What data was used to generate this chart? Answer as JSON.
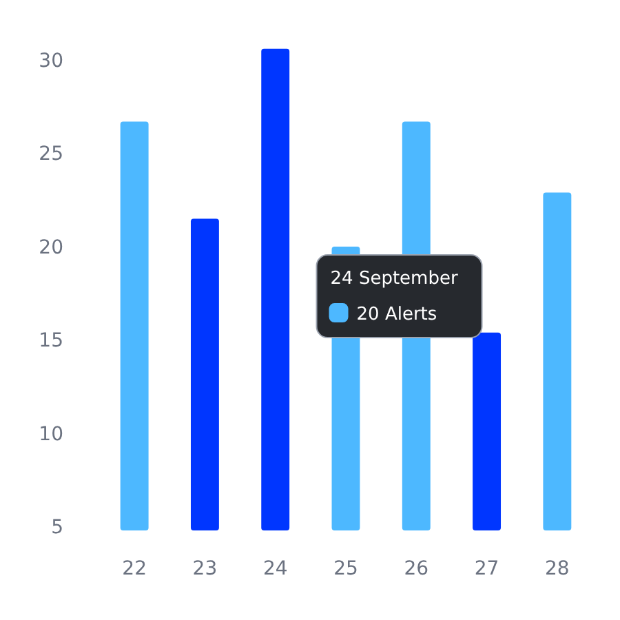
{
  "chart_data": {
    "type": "bar",
    "categories": [
      "22",
      "23",
      "24",
      "25",
      "26",
      "27",
      "28"
    ],
    "values": [
      26.7,
      21.5,
      30.6,
      20,
      26.7,
      15.4,
      22.9
    ],
    "colors": [
      "#4db8ff",
      "#0036ff",
      "#0036ff",
      "#4db8ff",
      "#4db8ff",
      "#0036ff",
      "#4db8ff"
    ],
    "ylim": [
      4.8,
      31
    ],
    "yticks": [
      5,
      10,
      15,
      20,
      25,
      30
    ],
    "grid": false,
    "annotations": [
      {
        "text": "24 September",
        "x": "25",
        "y": 20
      },
      "20 Alerts"
    ]
  }
}
